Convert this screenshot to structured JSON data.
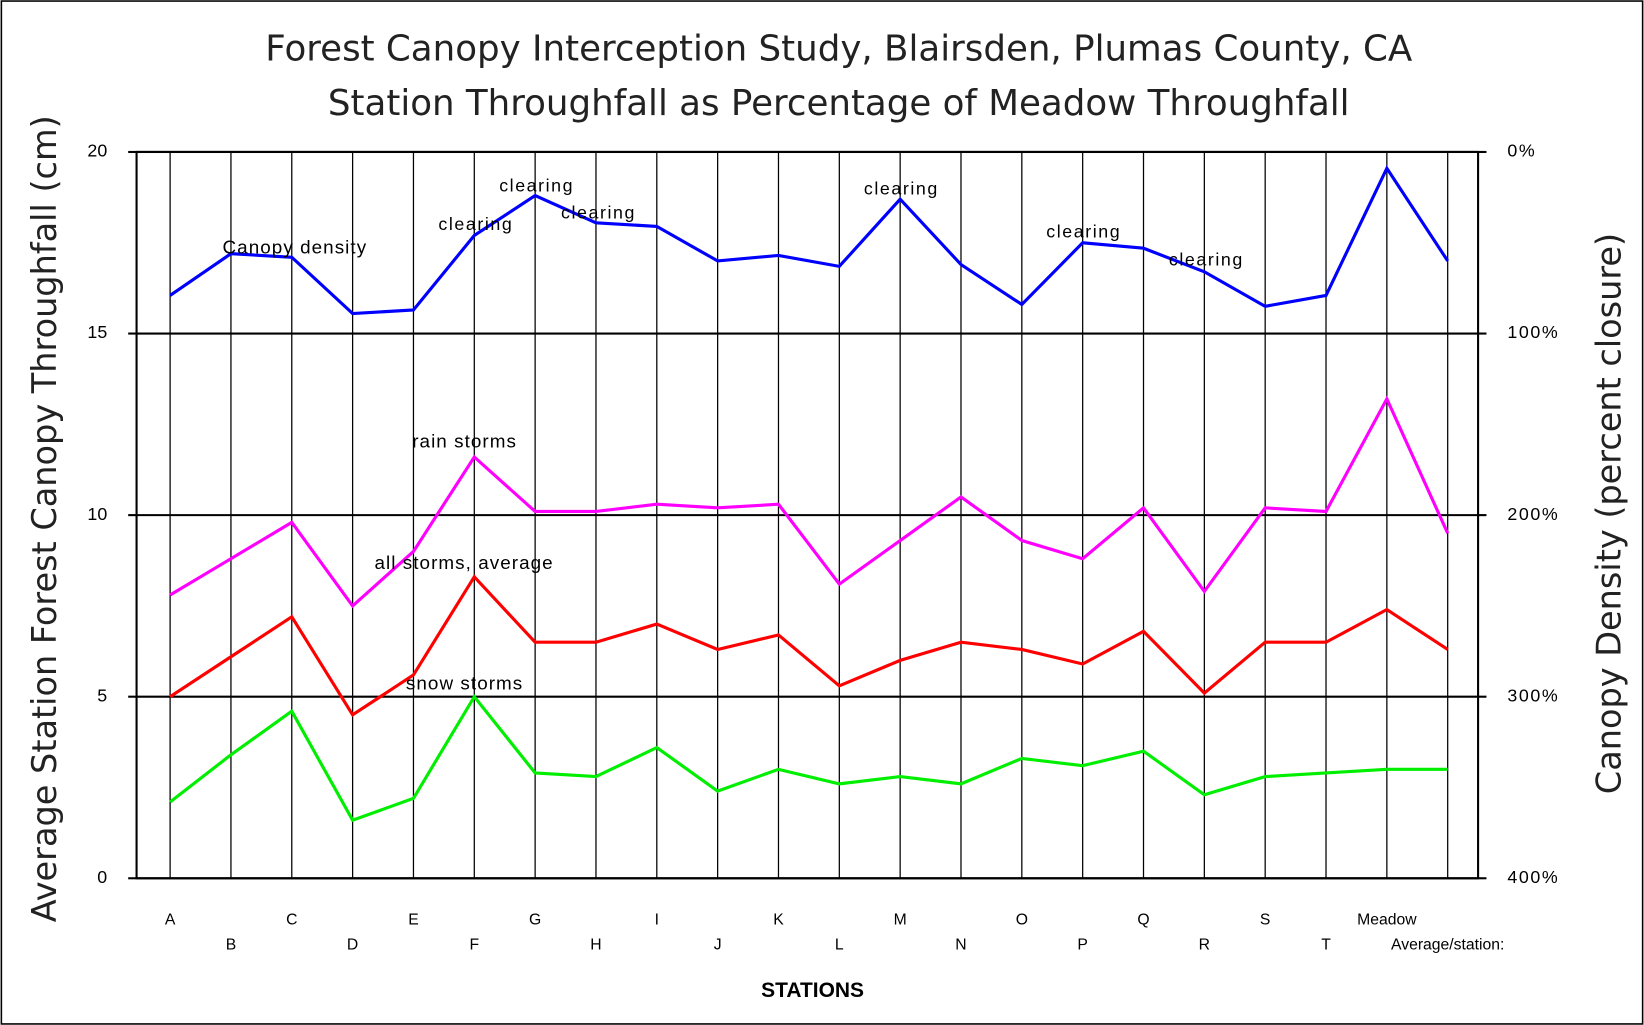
{
  "chart_data": {
    "type": "line",
    "title": "Forest Canopy Interception Study, Blairsden, Plumas County, CA",
    "subtitle": "Station Throughfall as Percentage of Meadow Throughfall",
    "x_label": "STATIONS",
    "y_label": "Average Station Forest Canopy Throughfall (cm)",
    "y2_label": "Canopy Density (percent closure)",
    "categories": [
      "A",
      "B",
      "C",
      "D",
      "E",
      "F",
      "G",
      "H",
      "I",
      "J",
      "K",
      "L",
      "M",
      "N",
      "O",
      "P",
      "Q",
      "R",
      "S",
      "T",
      "Meadow",
      "Average/station:"
    ],
    "ylim": [
      0,
      20
    ],
    "yticks": [
      0,
      5,
      10,
      15,
      20
    ],
    "y2lim": [
      400,
      0
    ],
    "y2ticks": [
      {
        "value": 0,
        "label": "0%"
      },
      {
        "value": 100,
        "label": "100%"
      },
      {
        "value": 200,
        "label": "200%"
      },
      {
        "value": 300,
        "label": "300%"
      },
      {
        "value": 400,
        "label": "400%"
      }
    ],
    "grid": true,
    "series": [
      {
        "name": "Canopy density",
        "color": "#0000ff",
        "axis": "y2",
        "values": [
          79,
          56,
          58,
          89,
          87,
          46,
          24,
          39,
          41,
          60,
          57,
          63,
          26,
          62,
          84,
          50,
          53,
          66,
          85,
          79,
          9,
          60
        ]
      },
      {
        "name": "rain storms",
        "color": "#ff00ff",
        "values": [
          7.8,
          8.8,
          9.8,
          7.5,
          9.0,
          11.6,
          10.1,
          10.1,
          10.3,
          10.2,
          10.3,
          8.1,
          9.3,
          10.5,
          9.3,
          8.8,
          10.2,
          7.9,
          10.2,
          10.1,
          13.2,
          9.5
        ]
      },
      {
        "name": "all storms, average",
        "color": "#ff0000",
        "values": [
          5.0,
          6.1,
          7.2,
          4.5,
          5.6,
          8.3,
          6.5,
          6.5,
          7.0,
          6.3,
          6.7,
          5.3,
          6.0,
          6.5,
          6.3,
          5.9,
          6.8,
          5.1,
          6.5,
          6.5,
          7.4,
          6.3
        ]
      },
      {
        "name": "snow storms",
        "color": "#00ee00",
        "values": [
          2.1,
          3.4,
          4.6,
          1.6,
          2.2,
          5.0,
          2.9,
          2.8,
          3.6,
          2.4,
          3.0,
          2.6,
          2.8,
          2.6,
          3.3,
          3.1,
          3.5,
          2.3,
          2.8,
          2.9,
          3.0,
          3.0
        ]
      }
    ],
    "annotations": [
      "clearing",
      "clearing",
      "clearing",
      "clearing",
      "clearing",
      "clearing"
    ]
  }
}
